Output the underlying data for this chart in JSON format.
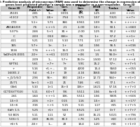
{
  "title": "Table 2: Predictive analysis of microarrays (PAM) was used to determine the change in expression of which\ngenes best predicted whether a sample was a responder or a non-responder.   Gene ID",
  "headers": [
    "Gene ID",
    "Responder\nFold +/-",
    "Corr.\nValue",
    "Corr.\nSD",
    "P-Value\nCorr.\nSD",
    "BTOB\nSD",
    "T-value",
    "P\nValue"
  ],
  "rows": [
    [
      "25101",
      "2.81",
      "1.--",
      "0.001",
      "155",
      "1.25",
      "4.30",
      "+.+21"
    ],
    [
      "+11C2",
      "1.71",
      "2.6+",
      ".754",
      "5.71",
      "1.57",
      "7.321",
      "+.+7+"
    ],
    [
      "CTD",
      "5.1+",
      "5.71",
      "366",
      "6.961",
      "1.59",
      "76.+",
      "+.++++"
    ],
    [
      "ABCA1/DX",
      ".76",
      "+.++1",
      ".21",
      "-1.00",
      "1.0+",
      "50.1",
      "+.+660"
    ],
    [
      "5.37%",
      "2.66",
      "5.+1",
      "30.+",
      "-2.00",
      "1.25",
      "50.2",
      "+.+332"
    ],
    [
      "C",
      "2.03",
      "0.53",
      "336+",
      ".76",
      "1.+",
      "57.2",
      "+.+1+"
    ],
    [
      "-411",
      "5.21",
      "1.11",
      "5.10",
      "7.71",
      "1.17",
      "nm22",
      "+.+1"
    ],
    [
      "165",
      "5.7+",
      "1+.",
      "1.+",
      ".54",
      "1.56",
      "56.5",
      "+.+016"
    ],
    [
      "1516",
      "7.76",
      "+.++1",
      "15.0",
      "+.19",
      "1.+6",
      "55.61",
      "+.+75"
    ],
    [
      "5aDFe2/6.0001",
      "2.0+",
      "+.+61",
      "0.172",
      "+.06",
      "1.5",
      "56.0+",
      "+.+1"
    ],
    [
      "+",
      "2.09",
      "1.--",
      "5.7+",
      "15.0+",
      "1.500",
      "57.12",
      "+.++4"
    ],
    [
      "WFTS1",
      "5.61",
      "+.7+",
      "7+",
      "5.91",
      "15.2",
      "57+.",
      "+.+7+5"
    ],
    [
      "+",
      "5.16",
      "+1.+...",
      "10",
      "4200",
      "15.4",
      "5560",
      "+.+055"
    ],
    [
      "16001 2",
      "5.4",
      "+1.1+",
      "19",
      "-4.16",
      "1560.",
      "5560",
      "+.+36"
    ],
    [
      "+_J1/1/6/2",
      "2.96",
      "56+.",
      "300",
      "2.61+",
      "12.72",
      "564+",
      "+.+6+0"
    ],
    [
      "21/71",
      "5n+1",
      "+.11",
      "21",
      "7.46",
      "+51",
      "77.1",
      "+.+7+"
    ],
    [
      "GTe6",
      "5.10",
      "1+1",
      "15+0",
      "106+",
      "1.621",
      "57.16",
      "+.+7+0"
    ],
    [
      "GCTDG(TTGX)",
      "5.11",
      "6.0+7",
      "5/6",
      "5.511",
      "1.56",
      "6n+0",
      "+.+7+0"
    ],
    [
      ".161",
      "1.64",
      "+.++1",
      "106.",
      "5.511",
      "1.56",
      "5005",
      "+.+606"
    ],
    [
      "1.5+3",
      "2.06",
      "+.1+",
      "0.15",
      "1.16",
      "1.5+",
      "223",
      "+.+177"
    ],
    [
      "1.5+6",
      ".316",
      "+.+1",
      "5.15",
      "5.11",
      "1.17",
      "+65",
      "+.+7+5"
    ],
    [
      "6bFr 1.5",
      "5.25",
      "+1+",
      "5.63",
      "6.521",
      "1.17",
      "0+7",
      "+.+7+7"
    ],
    [
      "50 BD5",
      "5.11",
      "1.11",
      "52",
      "1.60",
      "15.21",
      "5.021",
      "+.+796"
    ],
    [
      "5.06+1",
      "2.60",
      "36.01",
      "30.3",
      "+.76",
      "1.25",
      "+60",
      "+.+6+0"
    ],
    [
      "+6+5",
      "2.6+",
      "1.--",
      "20",
      "14.4",
      "1.20",
      "+56",
      "+.+1+0"
    ]
  ],
  "bg_color": "#ffffff",
  "header_bg": "#cccccc",
  "alt_row_bg": "#eeeeee",
  "border_color": "#999999",
  "font_size": 3.0,
  "title_font_size": 3.5
}
